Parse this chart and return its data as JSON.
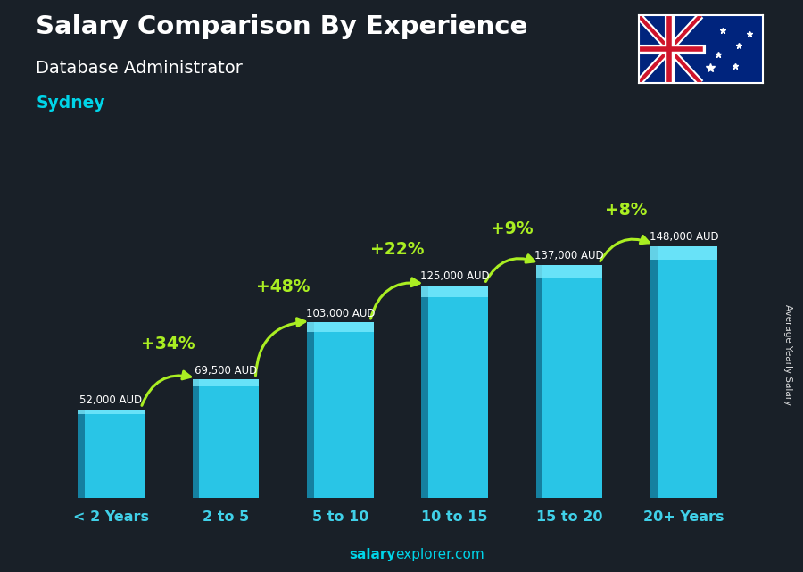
{
  "title": "Salary Comparison By Experience",
  "subtitle": "Database Administrator",
  "city": "Sydney",
  "categories": [
    "< 2 Years",
    "2 to 5",
    "5 to 10",
    "10 to 15",
    "15 to 20",
    "20+ Years"
  ],
  "values": [
    52000,
    69500,
    103000,
    125000,
    137000,
    148000
  ],
  "value_labels": [
    "52,000 AUD",
    "69,500 AUD",
    "103,000 AUD",
    "125,000 AUD",
    "137,000 AUD",
    "148,000 AUD"
  ],
  "pct_changes": [
    "+34%",
    "+48%",
    "+22%",
    "+9%",
    "+8%"
  ],
  "bar_face_color": "#29c5e6",
  "bar_left_color": "#1580a0",
  "bar_top_color": "#7eedff",
  "bg_color": "#15202b",
  "title_color": "#ffffff",
  "subtitle_color": "#ffffff",
  "city_color": "#00d4e8",
  "value_label_color": "#ffffff",
  "pct_color": "#aaee22",
  "xticklabel_color": "#40d0e8",
  "watermark_bold": "salary",
  "watermark_normal": "explorer.com",
  "ylabel_text": "Average Yearly Salary",
  "ylim_max": 175000,
  "bar_width": 0.58
}
